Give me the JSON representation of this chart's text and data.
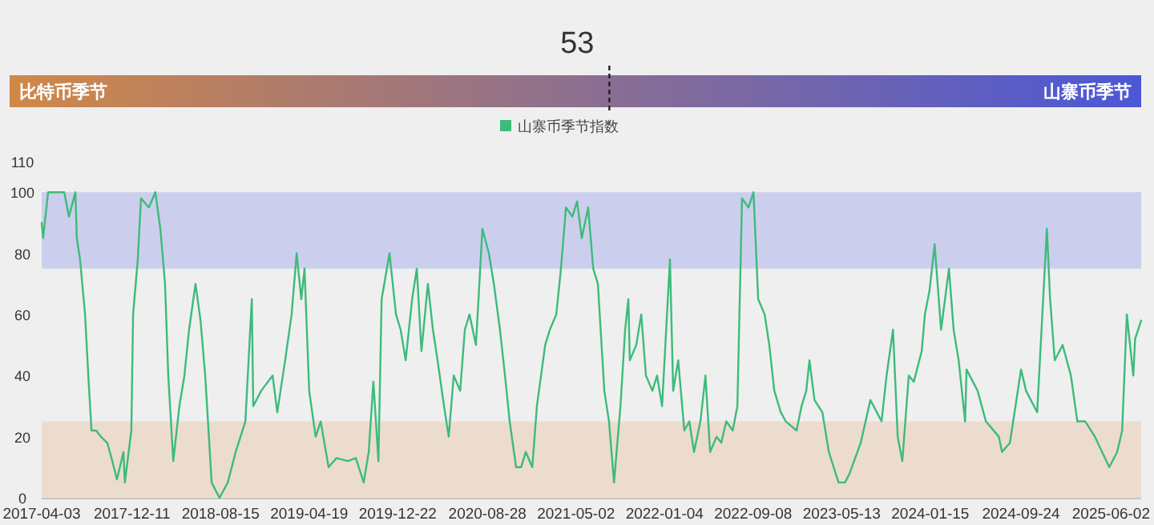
{
  "chart_data": [
    {
      "type": "other",
      "values": [
        53
      ],
      "data_labels": true,
      "annotations": [
        "比特币季节",
        "山寨币季节"
      ]
    },
    {
      "type": "line",
      "xlim": [
        "2017-04-03",
        "2025-08-25"
      ],
      "xticks": [
        "2017-04-03",
        "2017-12-11",
        "2018-08-15",
        "2019-04-19",
        "2019-12-22",
        "2020-08-28",
        "2021-05-02",
        "2022-01-04",
        "2022-09-08",
        "2023-05-13",
        "2024-01-15",
        "2024-09-24",
        "2025-06-02"
      ],
      "ylim": [
        0,
        110
      ],
      "yticks": [
        0,
        20,
        40,
        60,
        80,
        100,
        110
      ],
      "legend": "top",
      "bands": [
        {
          "axis": "y",
          "from": 0,
          "to": 25,
          "color": "#ecdccf"
        },
        {
          "axis": "y",
          "from": 75,
          "to": 100,
          "color": "#cbcfed"
        }
      ],
      "series": [
        {
          "name": "山寨币季节指数",
          "color": "#3dbb7a",
          "x": [
            "2017-04-03",
            "2017-04-07",
            "2017-04-21",
            "2017-06-05",
            "2017-06-18",
            "2017-07-06",
            "2017-07-10",
            "2017-07-19",
            "2017-08-02",
            "2017-08-11",
            "2017-08-20",
            "2017-09-02",
            "2017-09-15",
            "2017-10-03",
            "2017-10-17",
            "2017-10-30",
            "2017-11-17",
            "2017-11-21",
            "2017-12-09",
            "2017-12-14",
            "2017-12-27",
            "2018-01-05",
            "2018-01-27",
            "2018-02-14",
            "2018-02-28",
            "2018-03-13",
            "2018-03-22",
            "2018-04-05",
            "2018-04-22",
            "2018-05-06",
            "2018-05-19",
            "2018-06-06",
            "2018-06-20",
            "2018-07-03",
            "2018-07-21",
            "2018-08-03",
            "2018-08-12",
            "2018-09-04",
            "2018-09-26",
            "2018-10-23",
            "2018-11-10",
            "2018-11-14",
            "2018-12-06",
            "2019-01-07",
            "2019-01-20",
            "2019-02-11",
            "2019-03-01",
            "2019-03-15",
            "2019-03-28",
            "2019-04-06",
            "2019-04-19",
            "2019-05-07",
            "2019-05-21",
            "2019-06-12",
            "2019-07-04",
            "2019-08-05",
            "2019-08-27",
            "2019-09-18",
            "2019-10-02",
            "2019-10-15",
            "2019-10-29",
            "2019-11-07",
            "2019-11-29",
            "2019-12-17",
            "2019-12-30",
            "2020-01-13",
            "2020-01-31",
            "2020-02-13",
            "2020-02-26",
            "2020-03-15",
            "2020-03-29",
            "2020-04-11",
            "2020-04-29",
            "2020-05-12",
            "2020-05-26",
            "2020-06-13",
            "2020-06-26",
            "2020-07-09",
            "2020-07-27",
            "2020-08-14",
            "2020-09-01",
            "2020-09-15",
            "2020-10-02",
            "2020-10-16",
            "2020-10-29",
            "2020-11-16",
            "2020-11-30",
            "2020-12-13",
            "2020-12-31",
            "2021-01-13",
            "2021-02-05",
            "2021-02-18",
            "2021-03-08",
            "2021-03-21",
            "2021-04-04",
            "2021-04-22",
            "2021-05-05",
            "2021-05-18",
            "2021-06-05",
            "2021-06-19",
            "2021-07-02",
            "2021-07-20",
            "2021-08-02",
            "2021-08-16",
            "2021-09-03",
            "2021-09-16",
            "2021-09-25",
            "2021-09-29",
            "2021-10-17",
            "2021-10-31",
            "2021-11-13",
            "2021-12-01",
            "2021-12-14",
            "2021-12-28",
            "2022-01-19",
            "2022-01-28",
            "2022-02-11",
            "2022-02-28",
            "2022-03-14",
            "2022-03-27",
            "2022-04-14",
            "2022-04-28",
            "2022-05-11",
            "2022-05-29",
            "2022-06-11",
            "2022-06-25",
            "2022-07-13",
            "2022-07-26",
            "2022-08-08",
            "2022-08-26",
            "2022-09-09",
            "2022-09-22",
            "2022-10-10",
            "2022-10-23",
            "2022-11-06",
            "2022-11-24",
            "2022-12-08",
            "2023-01-07",
            "2023-01-21",
            "2023-02-03",
            "2023-02-12",
            "2023-02-26",
            "2023-03-20",
            "2023-04-07",
            "2023-05-04",
            "2023-05-22",
            "2023-06-04",
            "2023-07-05",
            "2023-08-01",
            "2023-09-01",
            "2023-09-15",
            "2023-10-03",
            "2023-10-16",
            "2023-10-29",
            "2023-11-16",
            "2023-11-30",
            "2023-12-22",
            "2023-12-31",
            "2024-01-13",
            "2024-01-27",
            "2024-02-14",
            "2024-03-07",
            "2024-03-20",
            "2024-04-03",
            "2024-04-21",
            "2024-04-25",
            "2024-05-26",
            "2024-06-18",
            "2024-07-24",
            "2024-08-02",
            "2024-08-24",
            "2024-09-24",
            "2024-10-08",
            "2024-11-08",
            "2024-12-05",
            "2024-12-14",
            "2024-12-27",
            "2025-01-18",
            "2025-02-10",
            "2025-02-28",
            "2025-03-22",
            "2025-04-18",
            "2025-05-28",
            "2025-06-19",
            "2025-07-03",
            "2025-07-16",
            "2025-08-03",
            "2025-08-08",
            "2025-08-25"
          ],
          "values": [
            90,
            85,
            100,
            100,
            92,
            100,
            85,
            78,
            60,
            40,
            22,
            22,
            20,
            18,
            12,
            6,
            15,
            5,
            22,
            60,
            78,
            98,
            95,
            100,
            88,
            70,
            40,
            12,
            30,
            40,
            55,
            70,
            58,
            40,
            5,
            2,
            0,
            5,
            15,
            25,
            65,
            30,
            35,
            40,
            28,
            45,
            60,
            80,
            65,
            75,
            35,
            20,
            25,
            10,
            13,
            12,
            13,
            5,
            15,
            38,
            12,
            65,
            80,
            60,
            55,
            45,
            65,
            75,
            48,
            70,
            55,
            45,
            30,
            20,
            40,
            35,
            55,
            60,
            50,
            88,
            80,
            70,
            55,
            40,
            25,
            10,
            10,
            15,
            10,
            30,
            50,
            55,
            60,
            75,
            95,
            92,
            97,
            85,
            95,
            75,
            70,
            35,
            25,
            5,
            30,
            55,
            65,
            45,
            50,
            60,
            40,
            35,
            40,
            30,
            78,
            35,
            45,
            22,
            25,
            15,
            25,
            40,
            15,
            20,
            18,
            25,
            22,
            30,
            98,
            95,
            100,
            65,
            60,
            50,
            35,
            28,
            25,
            22,
            30,
            35,
            45,
            32,
            28,
            15,
            5,
            5,
            8,
            18,
            32,
            25,
            40,
            55,
            20,
            12,
            40,
            38,
            48,
            60,
            68,
            83,
            55,
            75,
            55,
            45,
            25,
            42,
            35,
            25,
            20,
            15,
            18,
            42,
            35,
            28,
            88,
            65,
            45,
            50,
            40,
            25,
            25,
            20,
            10,
            15,
            22,
            60,
            40,
            52,
            58
          ]
        }
      ]
    }
  ]
}
